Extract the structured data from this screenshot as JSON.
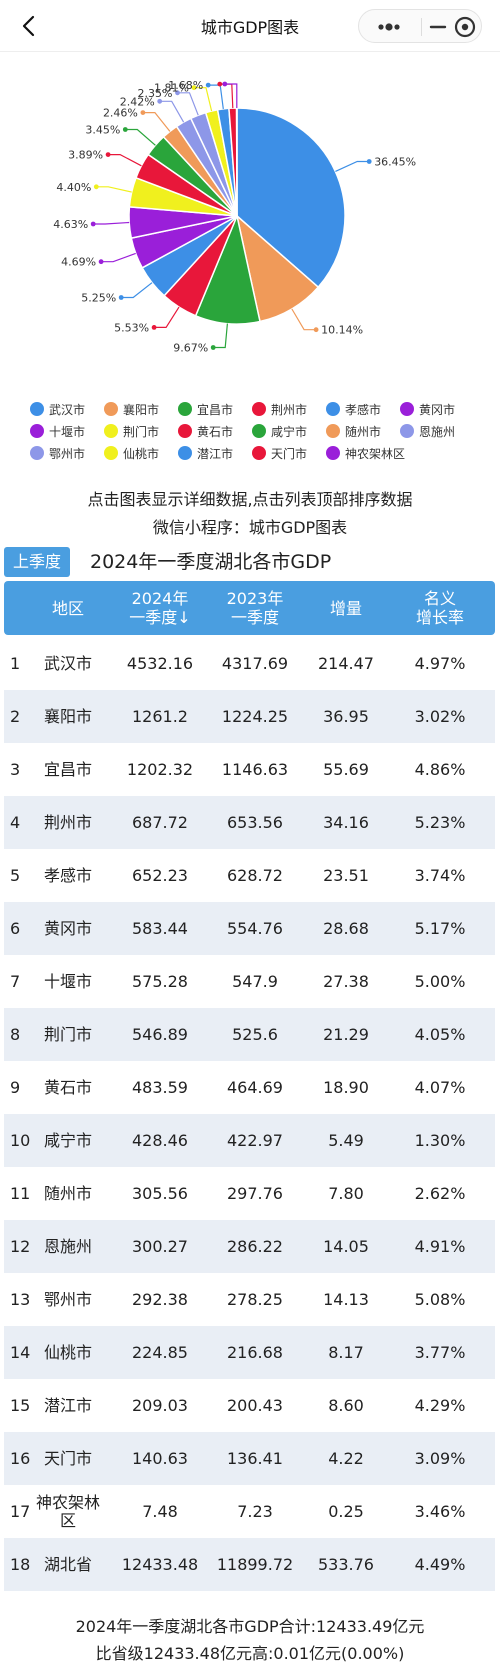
{
  "header": {
    "title": "城市GDP图表"
  },
  "chart_data": {
    "type": "pie",
    "slices": [
      {
        "name": "武汉市",
        "value": 36.45,
        "label": "36.45%",
        "color": "#3d8fe6"
      },
      {
        "name": "襄阳市",
        "value": 10.14,
        "label": "10.14%",
        "color": "#f09a59"
      },
      {
        "name": "宜昌市",
        "value": 9.67,
        "label": "9.67%",
        "color": "#2aa53b"
      },
      {
        "name": "荆州市",
        "value": 5.53,
        "label": "5.53%",
        "color": "#e8173a"
      },
      {
        "name": "孝感市",
        "value": 5.25,
        "label": "5.25%",
        "color": "#3d8fe6"
      },
      {
        "name": "黄冈市",
        "value": 4.69,
        "label": "4.69%",
        "color": "#9a1fd9"
      },
      {
        "name": "十堰市",
        "value": 4.63,
        "label": "4.63%",
        "color": "#9a1fd9"
      },
      {
        "name": "荆门市",
        "value": 4.4,
        "label": "4.40%",
        "color": "#f0f01e"
      },
      {
        "name": "黄石市",
        "value": 3.89,
        "label": "3.89%",
        "color": "#e8173a"
      },
      {
        "name": "咸宁市",
        "value": 3.45,
        "label": "3.45%",
        "color": "#2aa53b"
      },
      {
        "name": "随州市",
        "value": 2.46,
        "label": "2.46%",
        "color": "#f09a59"
      },
      {
        "name": "恩施州",
        "value": 2.42,
        "label": "2.42%",
        "color": "#8d97e8"
      },
      {
        "name": "鄂州市",
        "value": 2.35,
        "label": "2.35%",
        "color": "#8d97e8"
      },
      {
        "name": "仙桃市",
        "value": 1.81,
        "label": "1.81%",
        "color": "#f0f01e"
      },
      {
        "name": "潜江市",
        "value": 1.68,
        "label": "1.68%",
        "color": "#3d8fe6"
      },
      {
        "name": "天门市",
        "value": 1.13,
        "label": "",
        "color": "#e8173a"
      },
      {
        "name": "神农架林区",
        "value": 0.06,
        "label": "",
        "color": "#9a1fd9"
      }
    ]
  },
  "legend": [
    [
      {
        "name": "武汉市",
        "color": "#3d8fe6"
      },
      {
        "name": "襄阳市",
        "color": "#f09a59"
      },
      {
        "name": "宜昌市",
        "color": "#2aa53b"
      },
      {
        "name": "荆州市",
        "color": "#e8173a"
      },
      {
        "name": "孝感市",
        "color": "#3d8fe6"
      },
      {
        "name": "黄冈市",
        "color": "#9a1fd9"
      }
    ],
    [
      {
        "name": "十堰市",
        "color": "#9a1fd9"
      },
      {
        "name": "荆门市",
        "color": "#f0f01e"
      },
      {
        "name": "黄石市",
        "color": "#e8173a"
      },
      {
        "name": "咸宁市",
        "color": "#2aa53b"
      },
      {
        "name": "随州市",
        "color": "#f09a59"
      },
      {
        "name": "恩施州",
        "color": "#8d97e8"
      }
    ],
    [
      {
        "name": "鄂州市",
        "color": "#8d97e8"
      },
      {
        "name": "仙桃市",
        "color": "#f0f01e"
      },
      {
        "name": "潜江市",
        "color": "#3d8fe6"
      },
      {
        "name": "天门市",
        "color": "#e8173a"
      },
      {
        "name": "神农架林区",
        "color": "#9a1fd9"
      }
    ]
  ],
  "hints": {
    "line1": "点击图表显示详细数据,点击列表顶部排序数据",
    "line2": "微信小程序：城市GDP图表"
  },
  "season_button": "上季度",
  "table": {
    "title": "2024年一季度湖北各市GDP",
    "headers": [
      "地区",
      "2024年\n一季度↓",
      "2023年\n一季度",
      "增量",
      "名义\n增长率"
    ],
    "rows": [
      {
        "rank": "1",
        "region": "武汉市",
        "y2024": "4532.16",
        "y2023": "4317.69",
        "inc": "214.47",
        "rate": "4.97%"
      },
      {
        "rank": "2",
        "region": "襄阳市",
        "y2024": "1261.2",
        "y2023": "1224.25",
        "inc": "36.95",
        "rate": "3.02%"
      },
      {
        "rank": "3",
        "region": "宜昌市",
        "y2024": "1202.32",
        "y2023": "1146.63",
        "inc": "55.69",
        "rate": "4.86%"
      },
      {
        "rank": "4",
        "region": "荆州市",
        "y2024": "687.72",
        "y2023": "653.56",
        "inc": "34.16",
        "rate": "5.23%"
      },
      {
        "rank": "5",
        "region": "孝感市",
        "y2024": "652.23",
        "y2023": "628.72",
        "inc": "23.51",
        "rate": "3.74%"
      },
      {
        "rank": "6",
        "region": "黄冈市",
        "y2024": "583.44",
        "y2023": "554.76",
        "inc": "28.68",
        "rate": "5.17%"
      },
      {
        "rank": "7",
        "region": "十堰市",
        "y2024": "575.28",
        "y2023": "547.9",
        "inc": "27.38",
        "rate": "5.00%"
      },
      {
        "rank": "8",
        "region": "荆门市",
        "y2024": "546.89",
        "y2023": "525.6",
        "inc": "21.29",
        "rate": "4.05%"
      },
      {
        "rank": "9",
        "region": "黄石市",
        "y2024": "483.59",
        "y2023": "464.69",
        "inc": "18.90",
        "rate": "4.07%"
      },
      {
        "rank": "10",
        "region": "咸宁市",
        "y2024": "428.46",
        "y2023": "422.97",
        "inc": "5.49",
        "rate": "1.30%"
      },
      {
        "rank": "11",
        "region": "随州市",
        "y2024": "305.56",
        "y2023": "297.76",
        "inc": "7.80",
        "rate": "2.62%"
      },
      {
        "rank": "12",
        "region": "恩施州",
        "y2024": "300.27",
        "y2023": "286.22",
        "inc": "14.05",
        "rate": "4.91%"
      },
      {
        "rank": "13",
        "region": "鄂州市",
        "y2024": "292.38",
        "y2023": "278.25",
        "inc": "14.13",
        "rate": "5.08%"
      },
      {
        "rank": "14",
        "region": "仙桃市",
        "y2024": "224.85",
        "y2023": "216.68",
        "inc": "8.17",
        "rate": "3.77%"
      },
      {
        "rank": "15",
        "region": "潜江市",
        "y2024": "209.03",
        "y2023": "200.43",
        "inc": "8.60",
        "rate": "4.29%"
      },
      {
        "rank": "16",
        "region": "天门市",
        "y2024": "140.63",
        "y2023": "136.41",
        "inc": "4.22",
        "rate": "3.09%"
      },
      {
        "rank": "17",
        "region": "神农架林\n区",
        "y2024": "7.48",
        "y2023": "7.23",
        "inc": "0.25",
        "rate": "3.46%"
      },
      {
        "rank": "18",
        "region": "湖北省",
        "y2024": "12433.48",
        "y2023": "11899.72",
        "inc": "533.76",
        "rate": "4.49%"
      }
    ]
  },
  "footer": {
    "line1": "2024年一季度湖北各市GDP合计:12433.49亿元",
    "line2": "比省级12433.48亿元高:0.01亿元(0.00%)"
  }
}
